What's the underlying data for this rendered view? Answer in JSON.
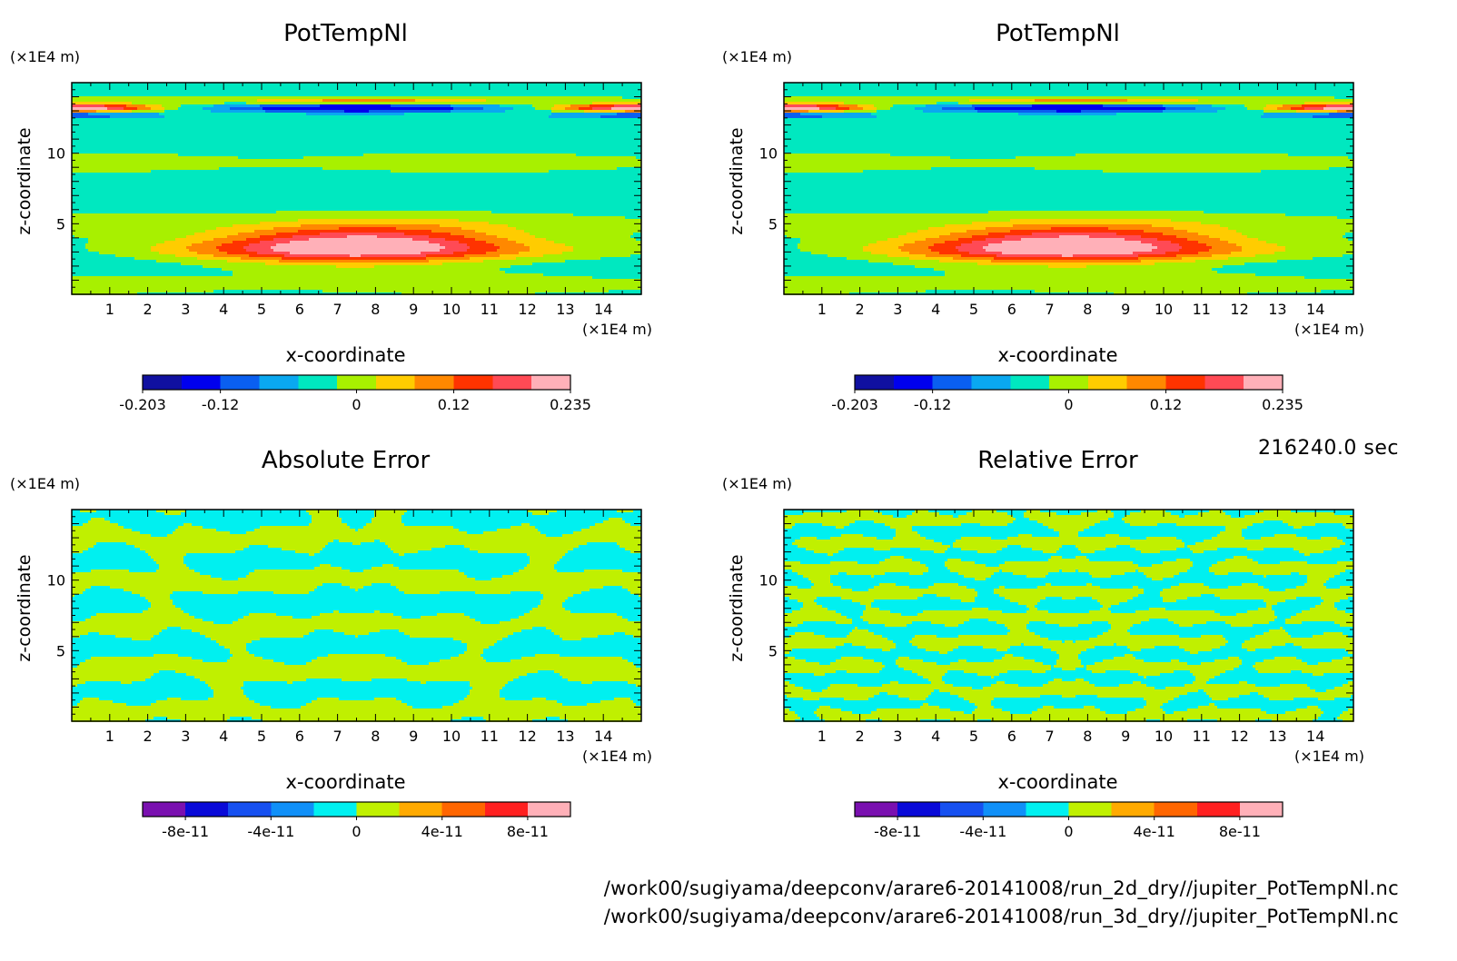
{
  "chart_data": [
    {
      "type": "heatmap",
      "title": "PotTempNl",
      "xlabel": "x-coordinate",
      "ylabel": "z-coordinate",
      "x_unit": "(×1E4 m)",
      "y_unit": "(×1E4 m)",
      "xlim": [
        0,
        15
      ],
      "ylim": [
        0,
        15
      ],
      "x_ticks": [
        "1",
        "2",
        "3",
        "4",
        "5",
        "6",
        "7",
        "8",
        "9",
        "10",
        "11",
        "12",
        "13",
        "14"
      ],
      "y_ticks": [
        "5",
        "10"
      ],
      "field": "potential_temperature",
      "colorbar": {
        "colors": [
          "#1010a0",
          "#0000ee",
          "#0a5ff0",
          "#0aa8f0",
          "#00e8c0",
          "#a8f000",
          "#ffcc00",
          "#ff8800",
          "#ff3300",
          "#ff4a55",
          "#ffb0b8"
        ],
        "tick_labels": [
          "-0.203",
          "-0.12",
          "0",
          "0.12",
          "0.235"
        ]
      }
    },
    {
      "type": "heatmap",
      "title": "PotTempNl",
      "xlabel": "x-coordinate",
      "ylabel": "z-coordinate",
      "x_unit": "(×1E4 m)",
      "y_unit": "(×1E4 m)",
      "xlim": [
        0,
        15
      ],
      "ylim": [
        0,
        15
      ],
      "x_ticks": [
        "1",
        "2",
        "3",
        "4",
        "5",
        "6",
        "7",
        "8",
        "9",
        "10",
        "11",
        "12",
        "13",
        "14"
      ],
      "y_ticks": [
        "5",
        "10"
      ],
      "field": "potential_temperature",
      "colorbar": {
        "colors": [
          "#1010a0",
          "#0000ee",
          "#0a5ff0",
          "#0aa8f0",
          "#00e8c0",
          "#a8f000",
          "#ffcc00",
          "#ff8800",
          "#ff3300",
          "#ff4a55",
          "#ffb0b8"
        ],
        "tick_labels": [
          "-0.203",
          "-0.12",
          "0",
          "0.12",
          "0.235"
        ]
      }
    },
    {
      "type": "heatmap",
      "title": "Absolute Error",
      "xlabel": "x-coordinate",
      "ylabel": "z-coordinate",
      "x_unit": "(×1E4 m)",
      "y_unit": "(×1E4 m)",
      "xlim": [
        0,
        15
      ],
      "ylim": [
        0,
        15
      ],
      "x_ticks": [
        "1",
        "2",
        "3",
        "4",
        "5",
        "6",
        "7",
        "8",
        "9",
        "10",
        "11",
        "12",
        "13",
        "14"
      ],
      "y_ticks": [
        "5",
        "10"
      ],
      "field": "absolute_error",
      "colorbar": {
        "colors": [
          "#7a10b0",
          "#0a0ad8",
          "#1650f0",
          "#1090f8",
          "#00f0f0",
          "#c0f000",
          "#ffaa00",
          "#ff6600",
          "#ff2020",
          "#ffb0b8"
        ],
        "tick_labels": [
          "-8e-11",
          "-4e-11",
          "0",
          "4e-11",
          "8e-11"
        ]
      }
    },
    {
      "type": "heatmap",
      "title": "Relative Error",
      "xlabel": "x-coordinate",
      "ylabel": "z-coordinate",
      "x_unit": "(×1E4 m)",
      "y_unit": "(×1E4 m)",
      "xlim": [
        0,
        15
      ],
      "ylim": [
        0,
        15
      ],
      "x_ticks": [
        "1",
        "2",
        "3",
        "4",
        "5",
        "6",
        "7",
        "8",
        "9",
        "10",
        "11",
        "12",
        "13",
        "14"
      ],
      "y_ticks": [
        "5",
        "10"
      ],
      "field": "relative_error",
      "colorbar": {
        "colors": [
          "#7a10b0",
          "#0a0ad8",
          "#1650f0",
          "#1090f8",
          "#00f0f0",
          "#c0f000",
          "#ffaa00",
          "#ff6600",
          "#ff2020",
          "#ffb0b8"
        ],
        "tick_labels": [
          "-8e-11",
          "-4e-11",
          "0",
          "4e-11",
          "8e-11"
        ]
      }
    }
  ],
  "time_label": "216240.0 sec",
  "file_paths": [
    "/work00/sugiyama/deepconv/arare6-20141008/run_2d_dry//jupiter_PotTempNl.nc",
    "/work00/sugiyama/deepconv/arare6-20141008/run_3d_dry//jupiter_PotTempNl.nc"
  ]
}
